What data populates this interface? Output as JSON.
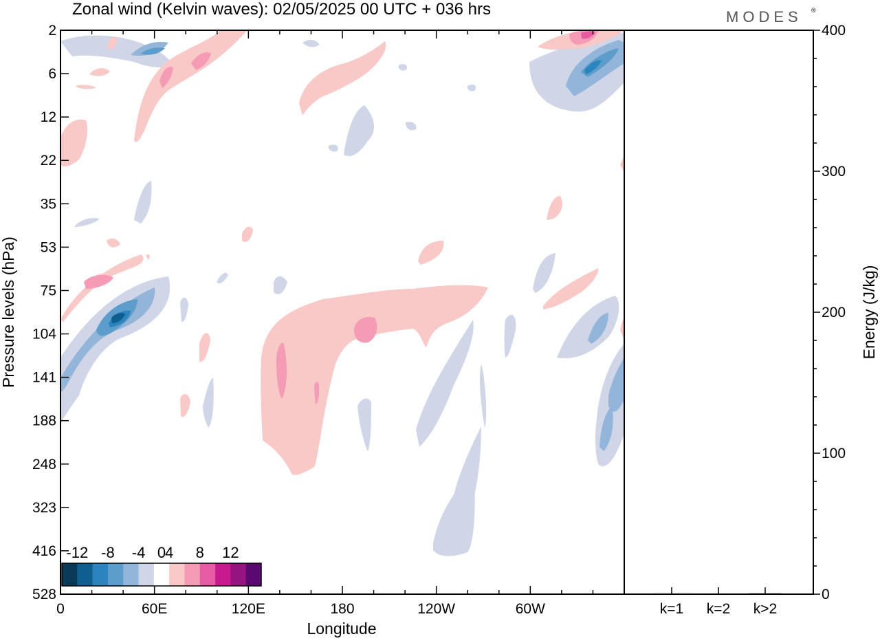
{
  "header": {
    "title": "Zonal wind (Kelvin waves):  02/05/2025  00 UTC  + 036 hrs",
    "brand": "MODES",
    "brand_mark": "®"
  },
  "chart_data": [
    {
      "type": "heatmap",
      "title": "Zonal wind (Kelvin waves):  02/05/2025  00 UTC  + 036 hrs",
      "xlabel": "Longitude",
      "ylabel": "Pressure levels (hPa)",
      "x_ticks": [
        "0",
        "60E",
        "120E",
        "180",
        "120W",
        "60W"
      ],
      "x_tick_values": [
        0,
        60,
        120,
        180,
        240,
        300
      ],
      "xlim": [
        0,
        360
      ],
      "y_ticks": [
        "2",
        "6",
        "12",
        "22",
        "35",
        "53",
        "75",
        "104",
        "141",
        "188",
        "248",
        "323",
        "416",
        "528"
      ],
      "y_scale": "pressure levels (equally spaced)",
      "colorbar": {
        "tick_labels": [
          "-12",
          "-8",
          "-4",
          "0",
          "4",
          "8",
          "12"
        ],
        "levels": [
          -14,
          -12,
          -10,
          -8,
          -6,
          -4,
          -2,
          2,
          4,
          6,
          8,
          10,
          12,
          14
        ],
        "colors": [
          "#0b3a57",
          "#0e5f8f",
          "#2b84bd",
          "#5d9dcb",
          "#93b5d9",
          "#d0d5e8",
          "#ffffff",
          "#f8c9c6",
          "#f59bb6",
          "#e75aa4",
          "#c71a8f",
          "#951480",
          "#5a0a6e"
        ]
      },
      "features": [
        {
          "sign": "negative",
          "peak": -13,
          "lon": 35,
          "level": "~90"
        },
        {
          "sign": "negative",
          "peak": -9,
          "lon": 335,
          "level": "~5"
        },
        {
          "sign": "negative",
          "peak": -9,
          "lon": 345,
          "level": "~170"
        },
        {
          "sign": "positive",
          "peak": 8,
          "lon": 190,
          "level": "~100"
        },
        {
          "sign": "positive",
          "peak": 8,
          "lon": 140,
          "level": "~130"
        },
        {
          "sign": "positive",
          "peak": 8,
          "lon": 88,
          "level": "~4"
        },
        {
          "sign": "positive",
          "peak": 8,
          "lon": 330,
          "level": "~2"
        }
      ],
      "color_map": {
        "negative": "#d0d5e8",
        "positive": "#f8c9c6"
      }
    },
    {
      "type": "bar",
      "categories": [
        "k=1",
        "k=2",
        "k>2"
      ],
      "values": [
        0.5,
        0.4,
        0.6
      ],
      "ylabel": "Energy (J/kg)",
      "ylim": [
        0,
        400
      ],
      "y_ticks": [
        0,
        100,
        200,
        300,
        400
      ]
    }
  ]
}
